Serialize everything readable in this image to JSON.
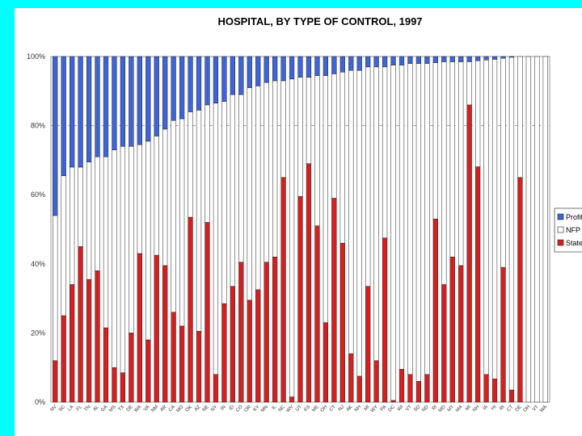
{
  "chart_data": {
    "type": "bar",
    "stacked": true,
    "percent_stacked": true,
    "title": "HOSPITAL, BY TYPE OF CONTROL, 1997",
    "xlabel": "",
    "ylabel": "",
    "ylim": [
      0,
      100
    ],
    "yticks": [
      "0%",
      "20%",
      "40%",
      "60%",
      "80%",
      "100%"
    ],
    "grid": "dashed line at 80%",
    "legend_position": "right",
    "colors": {
      "profit": "#3E64D8",
      "nfp": "#FFFFFF",
      "state": "#D42020",
      "background": "#00FFFF"
    },
    "categories": [
      "NV",
      "SC",
      "LA",
      "FL",
      "TN",
      "AL",
      "GA",
      "MS",
      "TX",
      "DE",
      "WA",
      "VA",
      "NM",
      "AR",
      "CA",
      "MO",
      "OK",
      "AZ",
      "NE",
      "NY",
      "IN",
      "ID",
      "CO",
      "OR",
      "KY",
      "MN",
      "IL",
      "NC",
      "WV",
      "UT",
      "KS",
      "ME",
      "OH",
      "CT",
      "NJ",
      "AK",
      "NH",
      "MI",
      "WY",
      "PA",
      "DC",
      "WI",
      "VT",
      "SD",
      "ND",
      "RI",
      "MD",
      "MT",
      "MA",
      "MI",
      "NH",
      "IA",
      "HI",
      "RI",
      "CT",
      "DE",
      "OH",
      "VT",
      "WA"
    ],
    "series": [
      {
        "name": "Profit",
        "values": [
          46,
          34.5,
          32,
          32,
          30.5,
          29,
          29,
          27,
          26,
          26,
          25.5,
          24.5,
          23,
          21,
          18.5,
          18,
          16,
          15.5,
          14,
          13.5,
          13,
          11,
          11,
          9,
          8.5,
          7.5,
          7,
          7,
          6.5,
          6,
          6,
          5.5,
          5.5,
          5,
          4.5,
          4,
          4,
          3,
          3,
          3,
          2.5,
          2.5,
          2,
          2,
          2,
          1.8,
          1.5,
          1.5,
          1.5,
          1.5,
          1.2,
          1,
          0.8,
          0.5,
          0.2,
          0,
          0,
          0,
          0
        ]
      },
      {
        "name": "NFP",
        "values": [
          42,
          40.5,
          34,
          23,
          34,
          33,
          49.5,
          63,
          65.5,
          54,
          31.5,
          57.5,
          34.5,
          39.5,
          55.5,
          60,
          30.5,
          64,
          34,
          78.5,
          58.5,
          55.5,
          48.5,
          61.5,
          59,
          52,
          51,
          28,
          92,
          34.5,
          25,
          43.5,
          71.5,
          36,
          49.5,
          82,
          88.5,
          63.5,
          85,
          49.5,
          97,
          88,
          90,
          92,
          90,
          45.2,
          64.5,
          56.5,
          59,
          12.5,
          30.7,
          91,
          92.5,
          60.5,
          96.3,
          35,
          100,
          100,
          100
        ]
      },
      {
        "name": "State",
        "values": [
          12,
          25,
          34,
          45,
          35.5,
          38,
          21.5,
          10,
          8.5,
          20,
          43,
          18,
          42.5,
          39.5,
          26,
          22,
          53.5,
          20.5,
          52,
          8,
          28.5,
          33.5,
          40.5,
          29.5,
          32.5,
          40.5,
          42,
          65,
          1.5,
          59.5,
          69,
          51,
          23,
          59,
          46,
          14,
          7.5,
          33.5,
          12,
          47.5,
          0.5,
          9.5,
          8,
          6,
          8,
          53,
          34,
          42,
          39.5,
          86,
          68.1,
          8,
          6.7,
          39,
          3.5,
          65,
          0,
          0,
          0
        ]
      }
    ]
  }
}
